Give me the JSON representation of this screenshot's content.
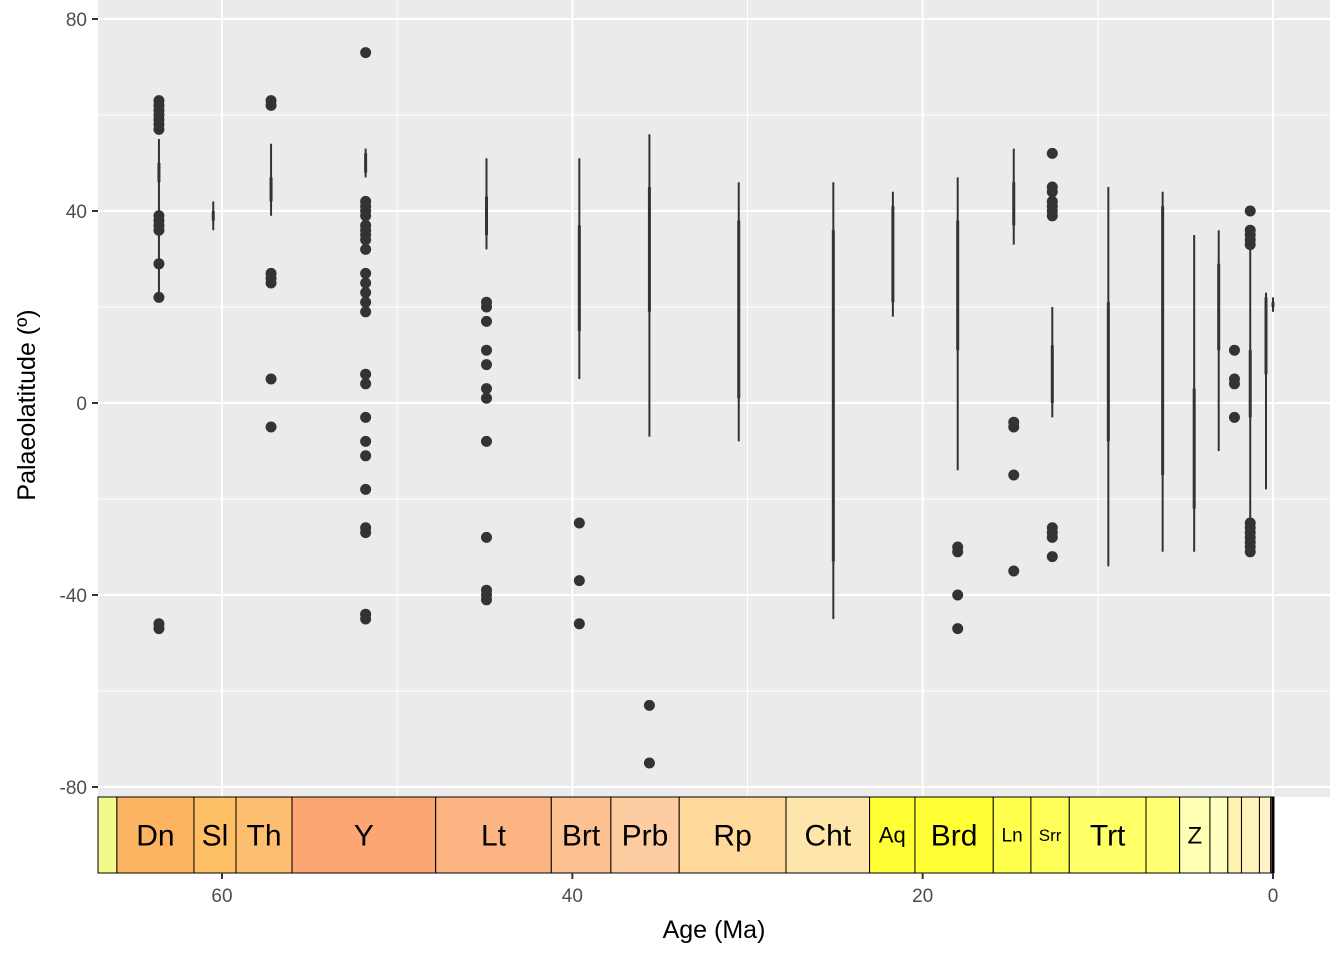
{
  "chart_data": {
    "type": "boxplot",
    "xlabel": "Age (Ma)",
    "ylabel": "Palaeolatitude (º)",
    "xlim": [
      67.5,
      -0.5
    ],
    "ylim": [
      -82,
      80
    ],
    "x_ticks": [
      60,
      40,
      20,
      0
    ],
    "y_ticks": [
      80,
      40,
      0,
      -40,
      -80
    ],
    "grid": true,
    "panel_color": "#ebebeb",
    "box_color": "#333333",
    "boxes": [
      {
        "x": 63.6,
        "min": 21,
        "q1": 46,
        "q3": 50,
        "max": 55,
        "outliers": [
          -47,
          -46,
          22,
          29,
          36,
          37,
          38,
          39,
          57,
          58,
          59,
          60,
          61,
          62,
          63
        ]
      },
      {
        "x": 60.5,
        "min": 36,
        "q1": 38,
        "q3": 40,
        "max": 42,
        "outliers": []
      },
      {
        "x": 57.2,
        "min": 39,
        "q1": 42,
        "q3": 47,
        "max": 54,
        "outliers": [
          -5,
          5,
          25,
          26,
          27,
          62,
          63
        ]
      },
      {
        "x": 51.8,
        "min": 47,
        "q1": 48,
        "q3": 52,
        "max": 53,
        "outliers": [
          -45,
          -44,
          -27,
          -26,
          -18,
          -11,
          -8,
          -3,
          4,
          6,
          19,
          21,
          23,
          25,
          27,
          32,
          34,
          35,
          36,
          37,
          39,
          40,
          41,
          42,
          73
        ]
      },
      {
        "x": 44.9,
        "min": 32,
        "q1": 35,
        "q3": 43,
        "max": 51,
        "outliers": [
          -41,
          -40,
          -39,
          -28,
          -8,
          1,
          3,
          8,
          11,
          17,
          20,
          21
        ]
      },
      {
        "x": 39.6,
        "min": 5,
        "q1": 15,
        "q3": 37,
        "max": 51,
        "outliers": [
          -46,
          -37,
          -25
        ]
      },
      {
        "x": 35.6,
        "min": -7,
        "q1": 19,
        "q3": 45,
        "max": 56,
        "outliers": [
          -75,
          -63
        ]
      },
      {
        "x": 30.5,
        "min": -8,
        "q1": 1,
        "q3": 38,
        "max": 46,
        "outliers": []
      },
      {
        "x": 25.1,
        "min": -45,
        "q1": -33,
        "q3": 36,
        "max": 46,
        "outliers": []
      },
      {
        "x": 21.7,
        "min": 18,
        "q1": 21,
        "q3": 41,
        "max": 44,
        "outliers": []
      },
      {
        "x": 18.0,
        "min": -14,
        "q1": 11,
        "q3": 38,
        "max": 47,
        "outliers": [
          -47,
          -40,
          -31,
          -30
        ]
      },
      {
        "x": 14.8,
        "min": 33,
        "q1": 37,
        "q3": 46,
        "max": 53,
        "outliers": [
          -35,
          -15,
          -5,
          -4
        ]
      },
      {
        "x": 12.6,
        "min": -3,
        "q1": 0,
        "q3": 12,
        "max": 20,
        "outliers": [
          -32,
          -28,
          -27,
          -26,
          39,
          40,
          41,
          42,
          44,
          45,
          52
        ]
      },
      {
        "x": 9.4,
        "min": -34,
        "q1": -8,
        "q3": 21,
        "max": 45,
        "outliers": []
      },
      {
        "x": 6.3,
        "min": -31,
        "q1": -15,
        "q3": 41,
        "max": 44,
        "outliers": []
      },
      {
        "x": 4.5,
        "min": -31,
        "q1": -22,
        "q3": 3,
        "max": 35,
        "outliers": []
      },
      {
        "x": 3.1,
        "min": -10,
        "q1": 11,
        "q3": 29,
        "max": 36,
        "outliers": []
      },
      {
        "x": 2.2,
        "min": null,
        "q1": null,
        "q3": null,
        "max": null,
        "outliers": [
          -3,
          4,
          5,
          11
        ]
      },
      {
        "x": 1.3,
        "min": -31,
        "q1": -3,
        "q3": 11,
        "max": 33,
        "outliers": [
          -31,
          -30,
          -29,
          -28,
          -27,
          -26,
          -25,
          33,
          34,
          35,
          36,
          40
        ]
      },
      {
        "x": 0.4,
        "min": -18,
        "q1": 6,
        "q3": 22,
        "max": 23,
        "outliers": []
      },
      {
        "x": 0.0,
        "min": 19,
        "q1": 20,
        "q3": 21,
        "max": 22,
        "outliers": []
      }
    ],
    "stages": [
      {
        "abbr": "",
        "start": 67.5,
        "end": 66.0,
        "color": "#F2FA8C"
      },
      {
        "abbr": "Dn",
        "start": 66.0,
        "end": 61.6,
        "color": "#FDB462"
      },
      {
        "abbr": "Sl",
        "start": 61.6,
        "end": 59.2,
        "color": "#FEBF65"
      },
      {
        "abbr": "Th",
        "start": 59.2,
        "end": 56.0,
        "color": "#FDBF6F"
      },
      {
        "abbr": "Y",
        "start": 56.0,
        "end": 47.8,
        "color": "#FCA773"
      },
      {
        "abbr": "Lt",
        "start": 47.8,
        "end": 41.2,
        "color": "#FCB482"
      },
      {
        "abbr": "Brt",
        "start": 41.2,
        "end": 37.8,
        "color": "#FDC091"
      },
      {
        "abbr": "Prb",
        "start": 37.8,
        "end": 33.9,
        "color": "#FDCDA1"
      },
      {
        "abbr": "Rp",
        "start": 33.9,
        "end": 27.8,
        "color": "#FED99A"
      },
      {
        "abbr": "Cht",
        "start": 27.8,
        "end": 23.03,
        "color": "#FEE6AA"
      },
      {
        "abbr": "Aq",
        "start": 23.03,
        "end": 20.44,
        "color": "#FFFF33"
      },
      {
        "abbr": "Brd",
        "start": 20.44,
        "end": 15.97,
        "color": "#FFFF33"
      },
      {
        "abbr": "Ln",
        "start": 15.97,
        "end": 13.82,
        "color": "#FFFF4D"
      },
      {
        "abbr": "Srr",
        "start": 13.82,
        "end": 11.63,
        "color": "#FFFF59"
      },
      {
        "abbr": "Trt",
        "start": 11.63,
        "end": 7.25,
        "color": "#FFFF66"
      },
      {
        "abbr": "",
        "start": 7.25,
        "end": 5.33,
        "color": "#FFFF73"
      },
      {
        "abbr": "Z",
        "start": 5.33,
        "end": 3.6,
        "color": "#FFFFB3"
      },
      {
        "abbr": "",
        "start": 3.6,
        "end": 2.58,
        "color": "#FFFFBF"
      },
      {
        "abbr": "",
        "start": 2.58,
        "end": 1.8,
        "color": "#FFF2AE"
      },
      {
        "abbr": "",
        "start": 1.8,
        "end": 0.774,
        "color": "#FFF2BA"
      },
      {
        "abbr": "",
        "start": 0.774,
        "end": 0.129,
        "color": "#FFF2C7"
      },
      {
        "abbr": "",
        "start": 0.129,
        "end": 0.0117,
        "color": "#FFF2D3"
      },
      {
        "abbr": "",
        "start": 0.0117,
        "end": 0.0,
        "color": "#FEF2E0"
      }
    ]
  }
}
